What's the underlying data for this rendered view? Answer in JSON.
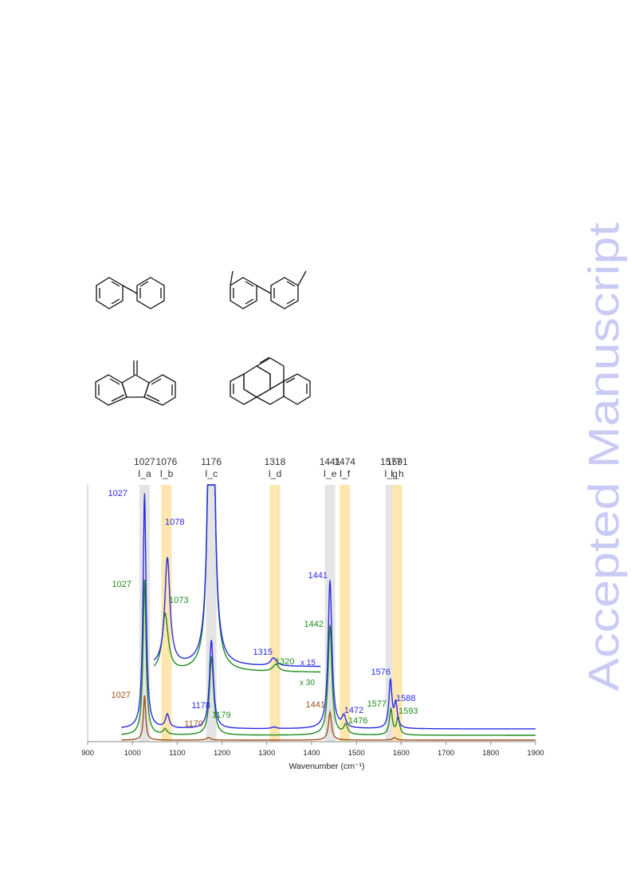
{
  "watermark": {
    "text": "Accepted Manuscript",
    "color": "#c9cbf5"
  },
  "colors": {
    "blue": "#2a2ae6",
    "green": "#1e8c1e",
    "brown": "#a0521e",
    "gray_band": "#e4e4e4",
    "yellow_band": "#fde6b0",
    "black": "#333333"
  },
  "chart_data": {
    "type": "line",
    "xlabel": "Wavenumber (cm⁻¹)",
    "xlim": [
      900,
      1900
    ],
    "x_ticks": [
      "900",
      "1000",
      "1100",
      "1200",
      "1300",
      "1400",
      "1500",
      "1600",
      "1700",
      "1800",
      "1900"
    ],
    "bands": [
      {
        "position": 1027,
        "label": "I_a",
        "color": "gray"
      },
      {
        "position": 1076,
        "label": "I_b",
        "color": "yellow"
      },
      {
        "position": 1176,
        "label": "I_c",
        "color": "gray"
      },
      {
        "position": 1318,
        "label": "I_d",
        "color": "yellow"
      },
      {
        "position": 1441,
        "label": "I_e",
        "color": "gray"
      },
      {
        "position": 1474,
        "label": "I_f",
        "color": "yellow"
      },
      {
        "position": 1577,
        "label": "I_g",
        "color": "gray"
      },
      {
        "position": 1591,
        "label": "I_h",
        "color": "yellow"
      }
    ],
    "series": [
      {
        "color": "blue",
        "peaks": [
          {
            "x": 1027,
            "label": "1027"
          },
          {
            "x": 1078,
            "label": "1078"
          },
          {
            "x": 1178,
            "label": "1178"
          },
          {
            "x": 1315,
            "label": "1315"
          },
          {
            "x": 1441,
            "label": "1441"
          },
          {
            "x": 1472,
            "label": "1472"
          },
          {
            "x": 1576,
            "label": "1576"
          },
          {
            "x": 1588,
            "label": "1588"
          }
        ]
      },
      {
        "color": "green",
        "peaks": [
          {
            "x": 1027,
            "label": "1027"
          },
          {
            "x": 1073,
            "label": "1073"
          },
          {
            "x": 1179,
            "label": "1179"
          },
          {
            "x": 1320,
            "label": "1320"
          },
          {
            "x": 1442,
            "label": "1442"
          },
          {
            "x": 1476,
            "label": "1476"
          },
          {
            "x": 1577,
            "label": "1577"
          },
          {
            "x": 1593,
            "label": "1593"
          }
        ]
      },
      {
        "color": "brown",
        "peaks": [
          {
            "x": 1027,
            "label": "1027"
          },
          {
            "x": 1170,
            "label": "1170"
          },
          {
            "x": 1441,
            "label": "1441"
          }
        ]
      }
    ],
    "scale_labels": [
      {
        "series": "blue",
        "text": "x 15"
      },
      {
        "series": "green",
        "text": "x 30"
      }
    ]
  }
}
